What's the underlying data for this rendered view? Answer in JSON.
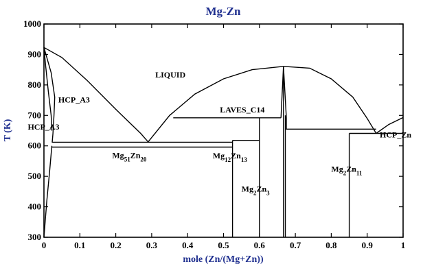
{
  "chart_data": {
    "type": "line",
    "title": "Mg-Zn",
    "xlabel": "mole (Zn/(Mg+Zn))",
    "ylabel": "T (K)",
    "xlim": [
      0,
      1
    ],
    "ylim": [
      300,
      1000
    ],
    "x_ticks": [
      "0",
      "0.1",
      "0.2",
      "0.3",
      "0.4",
      "0.5",
      "0.6",
      "0.7",
      "0.8",
      "0.9",
      "1"
    ],
    "y_ticks": [
      "300",
      "400",
      "500",
      "600",
      "700",
      "800",
      "900",
      "1000"
    ],
    "grid": false,
    "phase_labels": [
      {
        "text": "LIQUID",
        "x": 0.31,
        "y": 825
      },
      {
        "text": "HCP_A3",
        "x": 0.04,
        "y": 742
      },
      {
        "text": "HCP_A3",
        "x": -0.045,
        "y": 653
      },
      {
        "text": "LAVES_C14",
        "x": 0.49,
        "y": 710
      },
      {
        "text": "HCP_Zn",
        "x": 0.935,
        "y": 627
      }
    ],
    "compound_labels": [
      {
        "base": "Mg",
        "sub1": "51",
        "mid": "Zn",
        "sub2": "20",
        "x": 0.19,
        "y": 560
      },
      {
        "base": "Mg",
        "sub1": "12",
        "mid": "Zn",
        "sub2": "13",
        "x": 0.47,
        "y": 559
      },
      {
        "base": "Mg",
        "sub1": "2",
        "mid": "Zn",
        "sub2": "3",
        "x": 0.55,
        "y": 450
      },
      {
        "base": "Mg",
        "sub1": "2",
        "mid": "Zn",
        "sub2": "11",
        "x": 0.8,
        "y": 515
      }
    ],
    "series": [
      {
        "values": [
          [
            0,
            923
          ],
          [
            0.05,
            890
          ],
          [
            0.12,
            815
          ],
          [
            0.2,
            720
          ],
          [
            0.27,
            640
          ],
          [
            0.29,
            613
          ]
        ]
      },
      {
        "values": [
          [
            0.29,
            613
          ],
          [
            0.35,
            700
          ],
          [
            0.42,
            770
          ],
          [
            0.5,
            820
          ],
          [
            0.58,
            850
          ],
          [
            0.667,
            861
          ]
        ]
      },
      {
        "values": [
          [
            0.667,
            861
          ],
          [
            0.74,
            855
          ],
          [
            0.8,
            820
          ],
          [
            0.86,
            760
          ],
          [
            0.9,
            690
          ],
          [
            0.925,
            641
          ]
        ]
      },
      {
        "values": [
          [
            0.925,
            641
          ],
          [
            0.96,
            670
          ],
          [
            1,
            693
          ]
        ]
      },
      {
        "values": [
          [
            0,
            923
          ],
          [
            0.02,
            840
          ],
          [
            0.03,
            760
          ],
          [
            0.028,
            700
          ],
          [
            0.025,
            640
          ],
          [
            0.023,
            612
          ]
        ]
      },
      {
        "values": [
          [
            0,
            300
          ],
          [
            0.008,
            420
          ],
          [
            0.016,
            520
          ],
          [
            0.022,
            600
          ]
        ]
      },
      {
        "values": [
          [
            0,
            923
          ],
          [
            0.005,
            860
          ],
          [
            0.012,
            780
          ],
          [
            0.02,
            700
          ],
          [
            0.022,
            650
          ]
        ]
      },
      {
        "values": [
          [
            0.022,
            612
          ],
          [
            0.525,
            612
          ]
        ]
      },
      {
        "values": [
          [
            0.022,
            596
          ],
          [
            0.525,
            596
          ]
        ]
      },
      {
        "values": [
          [
            0.29,
            613
          ],
          [
            0.29,
            613
          ]
        ]
      },
      {
        "values": [
          [
            0.36,
            692
          ],
          [
            0.66,
            692
          ]
        ]
      },
      {
        "values": [
          [
            0.525,
            618
          ],
          [
            0.6,
            618
          ]
        ]
      },
      {
        "values": [
          [
            0.525,
            300
          ],
          [
            0.525,
            618
          ]
        ]
      },
      {
        "values": [
          [
            0.6,
            300
          ],
          [
            0.6,
            692
          ]
        ]
      },
      {
        "values": [
          [
            0.66,
            692
          ],
          [
            0.667,
            861
          ]
        ]
      },
      {
        "values": [
          [
            0.667,
            861
          ],
          [
            0.675,
            692
          ],
          [
            0.675,
            655
          ],
          [
            0.85,
            655
          ],
          [
            0.925,
            655
          ]
        ]
      },
      {
        "values": [
          [
            0.667,
            300
          ],
          [
            0.667,
            861
          ]
        ]
      },
      {
        "values": [
          [
            0.672,
            300
          ],
          [
            0.672,
            700
          ]
        ]
      },
      {
        "values": [
          [
            0.85,
            300
          ],
          [
            0.85,
            641
          ]
        ]
      },
      {
        "values": [
          [
            0.85,
            641
          ],
          [
            1,
            641
          ]
        ]
      }
    ]
  }
}
